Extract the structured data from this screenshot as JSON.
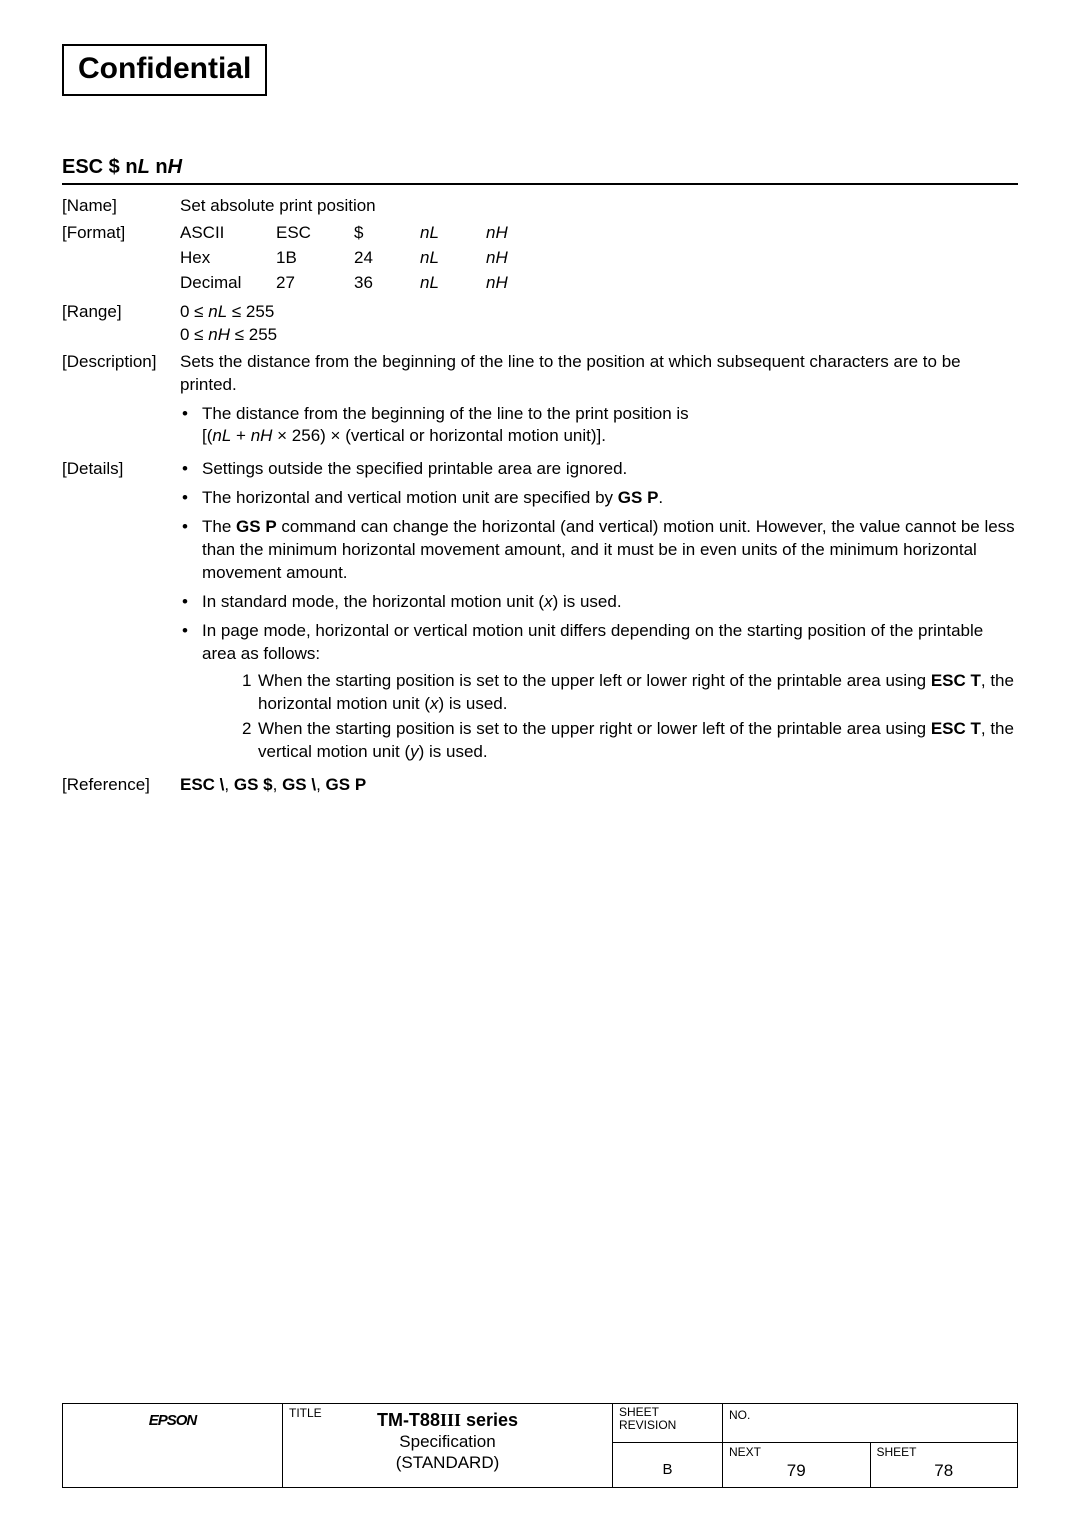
{
  "confidential": "Confidential",
  "command_title_prefix": "ESC $ n",
  "command_title_l": "L",
  "command_title_mid": " n",
  "command_title_h": "H",
  "labels": {
    "name": "[Name]",
    "format": "[Format]",
    "range": "[Range]",
    "description": "[Description]",
    "details": "[Details]",
    "reference": "[Reference]"
  },
  "name_text": "Set absolute print position",
  "format_table": {
    "rows": [
      [
        "ASCII",
        "ESC",
        "$",
        "nL",
        "nH"
      ],
      [
        "Hex",
        "1B",
        "24",
        "nL",
        "nH"
      ],
      [
        "Decimal",
        "27",
        "36",
        "nL",
        "nH"
      ]
    ]
  },
  "range_lines": [
    "0 ≤ nL ≤ 255",
    "0 ≤ nH ≤ 255"
  ],
  "description_text": "Sets the distance from the beginning of the line to the position at which subsequent characters are to be printed.",
  "description_sub_bullet": "The distance from the beginning of the line to the print position is",
  "description_formula": "[(nL + nH × 256) × (vertical or horizontal motion unit)].",
  "details_bullets": [
    "Settings outside the specified printable area are ignored.",
    "The horizontal and vertical motion unit are specified by <b>GS P</b>.",
    "The <b>GS P</b> command can change the horizontal (and vertical) motion unit.   However, the value cannot be less than the minimum horizontal movement amount, and it must be in even units of the minimum horizontal movement amount.",
    "In standard mode, the horizontal motion unit (<i>x</i>) is used.",
    "In page mode, horizontal or vertical motion unit differs depending on the starting position of the printable area as follows:"
  ],
  "details_numlist": [
    "When the starting position is set to the upper left or lower right of the printable area using <b>ESC T</b>, the horizontal motion unit (<i>x</i>) is used.",
    "When the starting position is set to the upper right or lower left of the printable area using <b>ESC T</b>, the vertical motion unit (<i>y</i>) is used."
  ],
  "reference_text": "<b>ESC \\</b>, <b>GS $</b>, <b>GS \\</b>, <b>GS P</b>",
  "footer": {
    "logo": "EPSON",
    "title_label": "TITLE",
    "title_main": "TM-T88III series",
    "title_sub1": "Specification",
    "title_sub2": "(STANDARD)",
    "sheet_rev_label": "SHEET\nREVISION",
    "sheet_rev_value": "B",
    "no_label": "NO.",
    "next_label": "NEXT",
    "next_value": "79",
    "sheet_label": "SHEET",
    "sheet_value": "78"
  }
}
